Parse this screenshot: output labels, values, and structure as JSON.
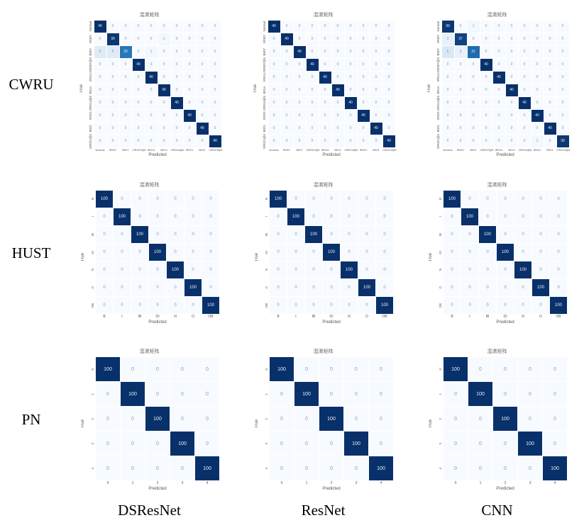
{
  "rows": [
    {
      "label": "CWRU"
    },
    {
      "label": "HUST"
    },
    {
      "label": "PN"
    }
  ],
  "columns": [
    {
      "label": "DSResNet"
    },
    {
      "label": "ResNet"
    },
    {
      "label": "CNN"
    }
  ],
  "colors": {
    "heatmap_min": "#f7fbff",
    "heatmap_max": "#08306b"
  },
  "chart_data": [
    {
      "type": "heatmap",
      "dataset": "CWRU",
      "model": "DSResNet",
      "title": "混淆矩阵",
      "xlabel": "Predicted",
      "ylabel": "True",
      "categories": [
        "Normal",
        "IR007",
        "B007",
        "OR007@6",
        "IR014",
        "B014",
        "OR014@6",
        "IR021",
        "B021",
        "OR021@6"
      ],
      "matrix": [
        [
          40,
          0,
          0,
          0,
          0,
          0,
          0,
          0,
          0,
          0
        ],
        [
          0,
          39,
          0,
          0,
          0,
          1,
          0,
          0,
          0,
          0
        ],
        [
          5,
          5,
          29,
          0,
          1,
          0,
          0,
          0,
          0,
          0
        ],
        [
          0,
          0,
          0,
          40,
          0,
          0,
          0,
          0,
          0,
          0
        ],
        [
          0,
          0,
          0,
          0,
          40,
          0,
          0,
          0,
          0,
          0
        ],
        [
          0,
          0,
          0,
          0,
          0,
          40,
          0,
          0,
          0,
          0
        ],
        [
          0,
          0,
          0,
          0,
          0,
          0,
          40,
          0,
          0,
          0
        ],
        [
          0,
          0,
          0,
          0,
          0,
          0,
          0,
          40,
          0,
          0
        ],
        [
          0,
          0,
          0,
          0,
          0,
          0,
          0,
          0,
          40,
          0
        ],
        [
          0,
          0,
          0,
          0,
          0,
          0,
          0,
          0,
          0,
          40
        ]
      ]
    },
    {
      "type": "heatmap",
      "dataset": "CWRU",
      "model": "ResNet",
      "title": "混淆矩阵",
      "xlabel": "Predicted",
      "ylabel": "True",
      "categories": [
        "Normal",
        "IR007",
        "B007",
        "OR007@6",
        "IR014",
        "B014",
        "OR014@6",
        "IR021",
        "B021",
        "OR021@6"
      ],
      "matrix": [
        [
          40,
          0,
          0,
          0,
          0,
          0,
          0,
          0,
          0,
          0
        ],
        [
          0,
          40,
          0,
          0,
          0,
          0,
          0,
          0,
          0,
          0
        ],
        [
          0,
          0,
          40,
          0,
          0,
          0,
          0,
          0,
          0,
          0
        ],
        [
          0,
          0,
          0,
          40,
          0,
          0,
          0,
          0,
          0,
          0
        ],
        [
          0,
          0,
          0,
          0,
          40,
          0,
          0,
          0,
          0,
          0
        ],
        [
          0,
          0,
          0,
          0,
          0,
          40,
          0,
          0,
          0,
          0
        ],
        [
          0,
          0,
          0,
          0,
          0,
          0,
          40,
          0,
          0,
          0
        ],
        [
          0,
          0,
          0,
          0,
          0,
          0,
          0,
          40,
          0,
          0
        ],
        [
          0,
          0,
          0,
          0,
          0,
          0,
          0,
          0,
          40,
          0
        ],
        [
          0,
          0,
          0,
          0,
          0,
          0,
          0,
          0,
          0,
          40
        ]
      ]
    },
    {
      "type": "heatmap",
      "dataset": "CWRU",
      "model": "CNN",
      "title": "混淆矩阵",
      "xlabel": "Predicted",
      "ylabel": "True",
      "categories": [
        "Normal",
        "IR007",
        "B007",
        "OR007@6",
        "IR014",
        "B014",
        "OR014@6",
        "IR021",
        "B021",
        "OR021@6"
      ],
      "matrix": [
        [
          39,
          0,
          1,
          0,
          0,
          0,
          0,
          0,
          0,
          0
        ],
        [
          3,
          37,
          0,
          0,
          0,
          0,
          0,
          0,
          0,
          0
        ],
        [
          6,
          3,
          31,
          0,
          0,
          0,
          0,
          0,
          0,
          0
        ],
        [
          0,
          0,
          0,
          40,
          0,
          0,
          0,
          0,
          0,
          0
        ],
        [
          0,
          0,
          0,
          0,
          40,
          0,
          0,
          0,
          0,
          0
        ],
        [
          0,
          0,
          0,
          0,
          0,
          40,
          0,
          0,
          0,
          0
        ],
        [
          0,
          0,
          0,
          0,
          0,
          0,
          40,
          0,
          0,
          0
        ],
        [
          0,
          0,
          0,
          0,
          0,
          0,
          0,
          40,
          0,
          0
        ],
        [
          0,
          0,
          0,
          0,
          0,
          0,
          0,
          0,
          40,
          0
        ],
        [
          0,
          0,
          0,
          0,
          0,
          0,
          0,
          1,
          0,
          39
        ]
      ]
    },
    {
      "type": "heatmap",
      "dataset": "HUST",
      "model": "DSResNet",
      "title": "混淆矩阵",
      "xlabel": "Predicted",
      "ylabel": "True",
      "categories": [
        "B",
        "I",
        "IB",
        "IO",
        "N",
        "O",
        "OB"
      ],
      "matrix": [
        [
          100,
          0,
          0,
          0,
          0,
          0,
          0
        ],
        [
          0,
          100,
          0,
          0,
          0,
          0,
          0
        ],
        [
          0,
          0,
          100,
          0,
          0,
          0,
          0
        ],
        [
          0,
          0,
          0,
          100,
          0,
          0,
          0
        ],
        [
          0,
          0,
          0,
          0,
          100,
          0,
          0
        ],
        [
          0,
          0,
          0,
          0,
          0,
          100,
          0
        ],
        [
          0,
          0,
          0,
          0,
          0,
          0,
          100
        ]
      ]
    },
    {
      "type": "heatmap",
      "dataset": "HUST",
      "model": "ResNet",
      "title": "混淆矩阵",
      "xlabel": "Predicted",
      "ylabel": "True",
      "categories": [
        "B",
        "I",
        "IB",
        "IO",
        "N",
        "O",
        "OB"
      ],
      "matrix": [
        [
          100,
          0,
          0,
          0,
          0,
          0,
          0
        ],
        [
          0,
          100,
          0,
          0,
          0,
          0,
          0
        ],
        [
          0,
          0,
          100,
          0,
          0,
          0,
          0
        ],
        [
          0,
          0,
          0,
          100,
          0,
          0,
          0
        ],
        [
          0,
          0,
          0,
          0,
          100,
          0,
          0
        ],
        [
          0,
          0,
          0,
          0,
          0,
          100,
          0
        ],
        [
          0,
          0,
          0,
          0,
          0,
          0,
          100
        ]
      ]
    },
    {
      "type": "heatmap",
      "dataset": "HUST",
      "model": "CNN",
      "title": "混淆矩阵",
      "xlabel": "Predicted",
      "ylabel": "True",
      "categories": [
        "B",
        "I",
        "IB",
        "IO",
        "N",
        "O",
        "OB"
      ],
      "matrix": [
        [
          100,
          0,
          0,
          0,
          0,
          0,
          0
        ],
        [
          0,
          100,
          0,
          0,
          0,
          0,
          0
        ],
        [
          0,
          0,
          100,
          0,
          0,
          0,
          0
        ],
        [
          0,
          0,
          0,
          100,
          0,
          0,
          0
        ],
        [
          0,
          0,
          0,
          0,
          100,
          0,
          0
        ],
        [
          0,
          0,
          0,
          0,
          0,
          100,
          0
        ],
        [
          0,
          0,
          0,
          0,
          0,
          0,
          100
        ]
      ]
    },
    {
      "type": "heatmap",
      "dataset": "PN",
      "model": "DSResNet",
      "title": "混淆矩阵",
      "xlabel": "Predicted",
      "ylabel": "True",
      "categories": [
        "0",
        "1",
        "2",
        "3",
        "4"
      ],
      "matrix": [
        [
          100,
          0,
          0,
          0,
          0
        ],
        [
          0,
          100,
          0,
          0,
          0
        ],
        [
          0,
          0,
          100,
          0,
          0
        ],
        [
          0,
          0,
          0,
          100,
          0
        ],
        [
          0,
          0,
          0,
          0,
          100
        ]
      ]
    },
    {
      "type": "heatmap",
      "dataset": "PN",
      "model": "ResNet",
      "title": "混淆矩阵",
      "xlabel": "Predicted",
      "ylabel": "True",
      "categories": [
        "0",
        "1",
        "2",
        "3",
        "4"
      ],
      "matrix": [
        [
          100,
          0,
          0,
          0,
          0
        ],
        [
          0,
          100,
          0,
          0,
          0
        ],
        [
          0,
          0,
          100,
          0,
          0
        ],
        [
          0,
          0,
          0,
          100,
          0
        ],
        [
          0,
          0,
          0,
          0,
          100
        ]
      ]
    },
    {
      "type": "heatmap",
      "dataset": "PN",
      "model": "CNN",
      "title": "混淆矩阵",
      "xlabel": "Predicted",
      "ylabel": "True",
      "categories": [
        "0",
        "1",
        "2",
        "3",
        "4"
      ],
      "matrix": [
        [
          100,
          0,
          0,
          0,
          0
        ],
        [
          0,
          100,
          0,
          0,
          0
        ],
        [
          0,
          0,
          100,
          0,
          0
        ],
        [
          0,
          0,
          0,
          100,
          0
        ],
        [
          0,
          0,
          0,
          0,
          100
        ]
      ]
    }
  ]
}
